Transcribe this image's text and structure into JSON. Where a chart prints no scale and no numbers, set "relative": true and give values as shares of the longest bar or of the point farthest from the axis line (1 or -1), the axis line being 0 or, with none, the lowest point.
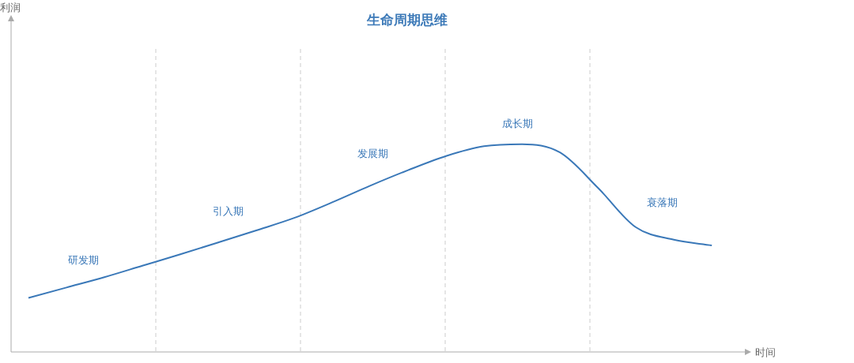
{
  "chart_data": {
    "type": "line",
    "title": "生命周期思维",
    "xlabel": "时间",
    "relative": true,
    "color": "#3a78b8",
    "marker": "none",
    "legend": false,
    "categories": [
      null,
      null,
      null,
      null,
      null,
      null,
      null,
      null,
      null,
      null,
      null,
      null,
      null,
      null,
      null,
      null,
      null,
      null,
      null
    ],
    "values": [
      0.26,
      0.31,
      0.36,
      0.415,
      0.47,
      0.527,
      0.585,
      0.645,
      0.72,
      0.8,
      0.875,
      0.943,
      0.99,
      1,
      0.96,
      0.79,
      0.6,
      0.54,
      0.513
    ],
    "annotations": [
      "利润",
      "研发期",
      "引入期",
      "发展期",
      "成长期",
      "衰落期"
    ]
  }
}
